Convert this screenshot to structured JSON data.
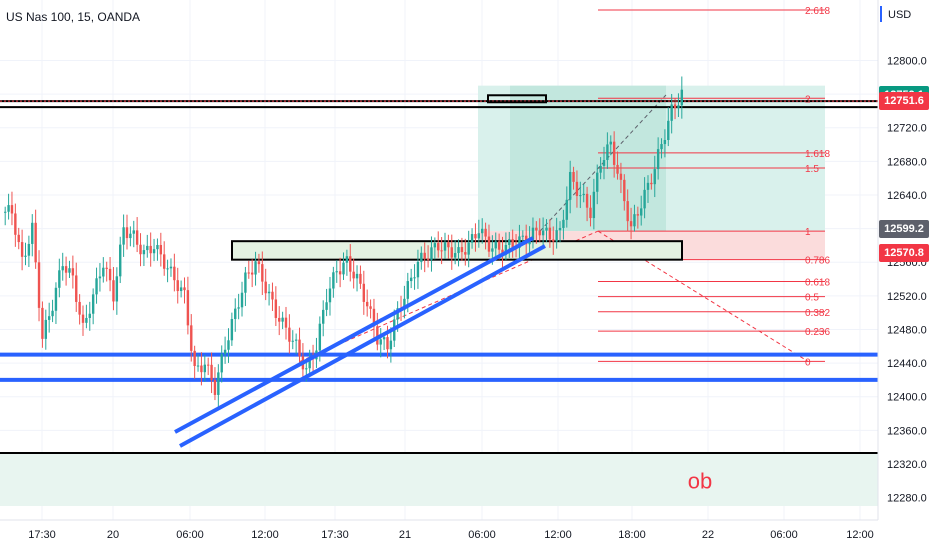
{
  "header": {
    "symbol": "US Nas 100, 15, OANDA",
    "currency": "USD"
  },
  "chart_data": {
    "type": "candlestick",
    "title": "US Nas 100, 15, OANDA",
    "ylim": [
      12270,
      12860
    ],
    "y_ticks": [
      12800,
      12760,
      12720,
      12680,
      12640,
      12600,
      12560,
      12520,
      12480,
      12440,
      12400,
      12360,
      12320,
      12280
    ],
    "x_ticks": [
      "17:30",
      "20",
      "06:00",
      "12:00",
      "17:30",
      "21",
      "06:00",
      "12:00",
      "18:00",
      "22",
      "06:00",
      "12:00"
    ],
    "colors": {
      "up": "#26a69a",
      "down": "#ef5350",
      "trendline": "#2962ff",
      "fib": "#f23645",
      "grid": "#f0f3fa"
    },
    "price_tags": [
      {
        "label": "12759.1",
        "value": 12759.1,
        "color": "#089981"
      },
      {
        "label": "12751.6",
        "value": 12751.6,
        "color": "#f23645"
      },
      {
        "label": "12599.2",
        "value": 12599.2,
        "color": "#5d606b"
      },
      {
        "label": "12570.8",
        "value": 12570.8,
        "color": "#f23645"
      }
    ],
    "fib_levels": [
      {
        "label": "2.618",
        "value": 12860
      },
      {
        "label": "2",
        "value": 12755
      },
      {
        "label": "1.618",
        "value": 12690
      },
      {
        "label": "1.5",
        "value": 12672
      },
      {
        "label": "1",
        "value": 12597
      },
      {
        "label": "0.786",
        "value": 12563
      },
      {
        "label": "0.618",
        "value": 12537
      },
      {
        "label": "0.5",
        "value": 12519
      },
      {
        "label": "0.382",
        "value": 12501
      },
      {
        "label": "0.236",
        "value": 12478
      },
      {
        "label": "0",
        "value": 12442
      }
    ],
    "horizontal_lines": [
      {
        "name": "resistance-black",
        "value": 12748,
        "color": "#000000"
      },
      {
        "name": "support-blue-upper",
        "value": 12450,
        "color": "#2962ff"
      },
      {
        "name": "support-blue-lower",
        "value": 12420,
        "color": "#2962ff"
      },
      {
        "name": "ob-top-black",
        "value": 12333,
        "color": "#000000"
      }
    ],
    "zones": [
      {
        "name": "order-block",
        "label": "ob",
        "top": 12333,
        "bottom": 12270
      }
    ],
    "price_series": [
      12620,
      12560,
      12600,
      12470,
      12510,
      12560,
      12540,
      12480,
      12520,
      12560,
      12520,
      12600,
      12590,
      12570,
      12580,
      12560,
      12540,
      12520,
      12430,
      12440,
      12410,
      12460,
      12500,
      12540,
      12560,
      12530,
      12500,
      12480,
      12460,
      12430,
      12460,
      12520,
      12550,
      12560,
      12540,
      12510,
      12470,
      12460,
      12500,
      12530,
      12560,
      12570,
      12580,
      12575,
      12570,
      12580,
      12600,
      12580,
      12575,
      12580,
      12585,
      12590,
      12600,
      12590,
      12595,
      12660,
      12640,
      12620,
      12680,
      12700,
      12650,
      12600,
      12630,
      12660,
      12700,
      12740,
      12760
    ]
  }
}
